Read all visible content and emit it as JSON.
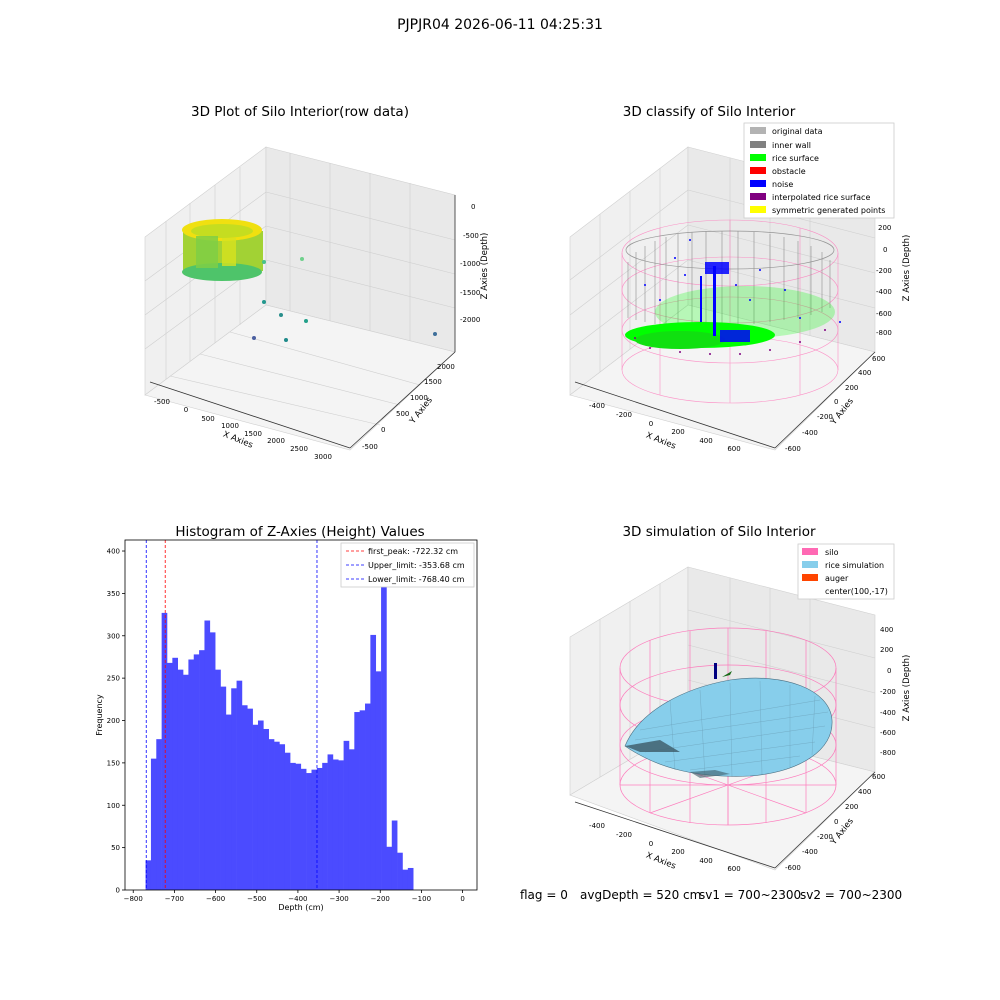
{
  "suptitle": "PJPJR04 2026-06-11 04:25:31",
  "status": {
    "flag": "flag = 0",
    "avg_depth": "avgDepth = 520 cm",
    "sv1": "sv1 = 700~2300",
    "sv2": "sv2 = 700~2300"
  },
  "colors": {
    "original_data": "#b3b3b3",
    "inner_wall": "#808080",
    "rice_surface": "#00ff00",
    "obstacle": "#ff0000",
    "noise": "#0000ff",
    "interpolated": "#800080",
    "symmetric": "#ffff00",
    "silo": "#ff69b4",
    "rice_sim": "#87ceeb",
    "auger": "#ff4500",
    "hist_bar": "#4b4bff",
    "first_peak_line": "#ff0000",
    "limit_line": "#0000ff"
  },
  "chart_data": [
    {
      "type": "scatter",
      "title": "3D Plot of Silo Interior(row data)",
      "xlabel": "X Axies",
      "ylabel": "Y Axies",
      "zlabel": "Z Axies (Depth)",
      "x_ticks": [
        "-500",
        "0",
        "500",
        "1000",
        "1500",
        "2000",
        "2500",
        "3000"
      ],
      "y_ticks": [
        "-500",
        "0",
        "500",
        "1000",
        "1500",
        "2000"
      ],
      "z_ticks": [
        "0",
        "-500",
        "-1000",
        "-1500",
        "-2000"
      ]
    },
    {
      "type": "scatter",
      "title": "3D classify of Silo Interior",
      "xlabel": "X Axies",
      "ylabel": "Y Axies",
      "zlabel": "Z Axies (Depth)",
      "x_ticks": [
        "-400",
        "-200",
        "0",
        "200",
        "400",
        "600"
      ],
      "y_ticks": [
        "600",
        "400",
        "200",
        "0",
        "-200",
        "-400",
        "-600"
      ],
      "z_ticks": [
        "200",
        "0",
        "-200",
        "-400",
        "-600",
        "-800"
      ],
      "legend": [
        "original data",
        "inner wall",
        "rice surface",
        "obstacle",
        "noise",
        "interpolated rice surface",
        "symmetric generated points"
      ]
    },
    {
      "type": "bar",
      "title": "Histogram of Z-Axies (Height) Values",
      "xlabel": "Depth (cm)",
      "ylabel": "Frequency",
      "xlim": [
        -800,
        0
      ],
      "ylim": [
        0,
        410
      ],
      "x_ticks": [
        -800,
        -700,
        -600,
        -500,
        -400,
        -300,
        -200,
        -100,
        0
      ],
      "y_ticks": [
        0,
        50,
        100,
        150,
        200,
        250,
        300,
        350,
        400
      ],
      "bin_start": -770,
      "bin_width": 13,
      "values": [
        35,
        155,
        178,
        327,
        268,
        274,
        260,
        254,
        272,
        278,
        283,
        318,
        304,
        260,
        240,
        207,
        238,
        247,
        218,
        214,
        195,
        200,
        190,
        178,
        175,
        172,
        162,
        150,
        149,
        143,
        138,
        142,
        144,
        150,
        160,
        154,
        153,
        176,
        166,
        210,
        212,
        220,
        301,
        258,
        393,
        51,
        82,
        44,
        24,
        26
      ],
      "lines": [
        {
          "x": -722.32,
          "label": "first_peak: -722.32 cm"
        },
        {
          "x": -353.68,
          "label": "Upper_limit: -353.68 cm"
        },
        {
          "x": -768.4,
          "label": "Lower_limit: -768.40 cm"
        }
      ]
    },
    {
      "type": "scatter",
      "title": "3D simulation of Silo Interior",
      "xlabel": "X Axies",
      "ylabel": "Y Axies",
      "zlabel": "Z Axies (Depth)",
      "x_ticks": [
        "-400",
        "-200",
        "0",
        "200",
        "400",
        "600"
      ],
      "y_ticks": [
        "600",
        "400",
        "200",
        "0",
        "-200",
        "-400",
        "-600"
      ],
      "z_ticks": [
        "400",
        "200",
        "0",
        "-200",
        "-400",
        "-600",
        "-800"
      ],
      "legend": [
        "silo",
        "rice simulation",
        "auger",
        "center(100,-17)"
      ]
    }
  ]
}
